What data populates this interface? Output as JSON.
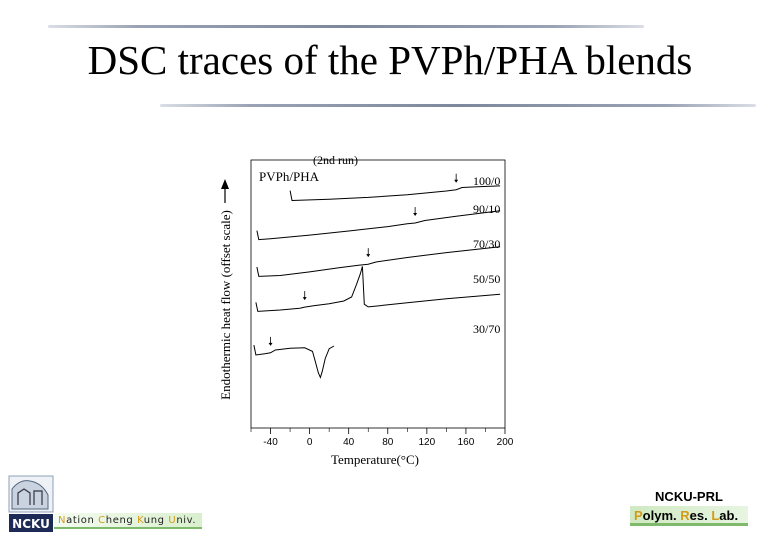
{
  "slide": {
    "title": "DSC traces of the PVPh/PHA blends"
  },
  "footer": {
    "logo_text": "NCKU",
    "university": {
      "parts": [
        {
          "hl": "N",
          "rest": "ation "
        },
        {
          "hl": "C",
          "rest": "heng "
        },
        {
          "hl": "K",
          "rest": "ung "
        },
        {
          "hl": "U",
          "rest": "niv."
        }
      ]
    },
    "lab_name": "NCKU-PRL",
    "lab_full": {
      "parts": [
        {
          "hl": "P",
          "rest": "olym. "
        },
        {
          "hl": "R",
          "rest": "es. "
        },
        {
          "hl": "L",
          "rest": "ab."
        }
      ]
    }
  },
  "colors": {
    "highlight": "#d39b1a",
    "accent_green": "#7fb96b",
    "rule": "#8a93a6"
  },
  "chart_data": {
    "type": "line",
    "run_label": "(2nd  run)",
    "legend_title": "PVPh/PHA",
    "xlabel": "Temperature(°C)",
    "ylabel": "Endothermic heat flow (offset scale)",
    "xlim": [
      -60,
      200
    ],
    "xticks": [
      -40,
      0,
      40,
      80,
      120,
      160,
      200
    ],
    "series": [
      {
        "name": "100/0",
        "points": [
          [
            -20,
            0.8
          ],
          [
            -18,
            0.25
          ],
          [
            20,
            0.32
          ],
          [
            60,
            0.42
          ],
          [
            100,
            0.57
          ],
          [
            140,
            0.78
          ],
          [
            150,
            0.85
          ],
          [
            156,
            0.97
          ],
          [
            175,
            1.02
          ],
          [
            195,
            1.06
          ]
        ],
        "tg": 150
      },
      {
        "name": "90/10",
        "points": [
          [
            -54,
            0.8
          ],
          [
            -52,
            0.3
          ],
          [
            -40,
            0.35
          ],
          [
            0,
            0.55
          ],
          [
            40,
            0.78
          ],
          [
            80,
            1.02
          ],
          [
            100,
            1.18
          ],
          [
            108,
            1.22
          ],
          [
            118,
            1.36
          ],
          [
            150,
            1.6
          ],
          [
            195,
            1.9
          ]
        ],
        "tg": 108
      },
      {
        "name": "70/30",
        "points": [
          [
            -54,
            0.72
          ],
          [
            -52,
            0.2
          ],
          [
            -30,
            0.25
          ],
          [
            0,
            0.45
          ],
          [
            30,
            0.68
          ],
          [
            50,
            0.82
          ],
          [
            60,
            0.88
          ],
          [
            68,
            1.0
          ],
          [
            100,
            1.25
          ],
          [
            140,
            1.52
          ],
          [
            195,
            1.85
          ]
        ],
        "tg": 60
      },
      {
        "name": "50/50",
        "points": [
          [
            -55,
            0.7
          ],
          [
            -53,
            0.2
          ],
          [
            -30,
            0.28
          ],
          [
            -10,
            0.38
          ],
          [
            -5,
            0.44
          ],
          [
            5,
            0.52
          ],
          [
            20,
            0.62
          ],
          [
            35,
            0.78
          ],
          [
            43,
            1.0
          ],
          [
            48,
            1.7
          ],
          [
            52,
            2.3
          ],
          [
            54,
            2.7
          ],
          [
            56,
            0.6
          ],
          [
            60,
            0.45
          ],
          [
            100,
            0.68
          ],
          [
            140,
            0.9
          ],
          [
            195,
            1.15
          ]
        ],
        "tg": -5
      },
      {
        "name": "30/70",
        "points": [
          [
            -57,
            0.55
          ],
          [
            -55,
            0.0
          ],
          [
            -45,
            0.08
          ],
          [
            -40,
            0.12
          ],
          [
            -35,
            0.28
          ],
          [
            -20,
            0.38
          ],
          [
            -5,
            0.4
          ],
          [
            3,
            0.2
          ],
          [
            6,
            -0.4
          ],
          [
            9,
            -1.0
          ],
          [
            11,
            -1.25
          ],
          [
            13,
            -0.9
          ],
          [
            16,
            -0.2
          ],
          [
            20,
            0.35
          ],
          [
            25,
            0.5
          ]
        ],
        "tg": -40
      }
    ]
  }
}
